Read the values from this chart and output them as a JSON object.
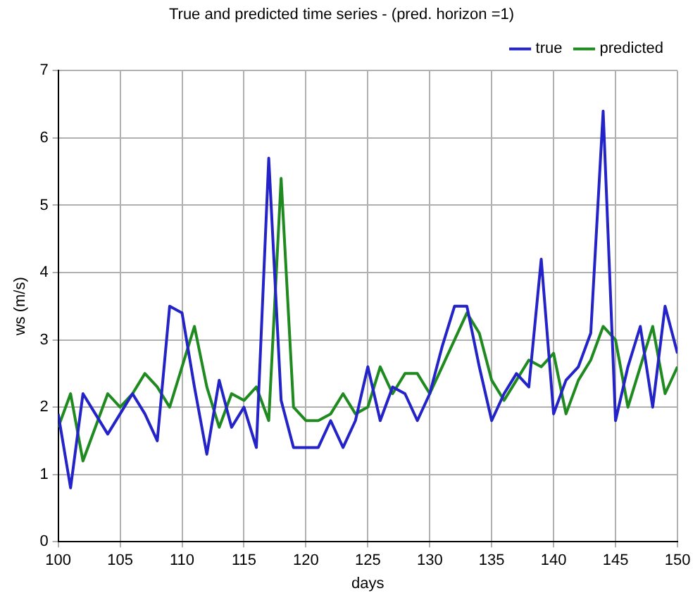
{
  "chart_data": {
    "type": "line",
    "title": "True and predicted time series - (pred. horizon =1)",
    "xlabel": "days",
    "ylabel": "ws (m/s)",
    "x": [
      100,
      101,
      102,
      103,
      104,
      105,
      106,
      107,
      108,
      109,
      110,
      111,
      112,
      113,
      114,
      115,
      116,
      117,
      118,
      119,
      120,
      121,
      122,
      123,
      124,
      125,
      126,
      127,
      128,
      129,
      130,
      131,
      132,
      133,
      134,
      135,
      136,
      137,
      138,
      139,
      140,
      141,
      142,
      143,
      144,
      145,
      146,
      147,
      148,
      149,
      150
    ],
    "series": [
      {
        "name": "true",
        "color": "#2323c8",
        "values": [
          1.9,
          0.8,
          2.2,
          1.9,
          1.6,
          1.9,
          2.2,
          1.9,
          1.5,
          3.5,
          3.4,
          2.3,
          1.3,
          2.4,
          1.7,
          2.0,
          1.4,
          5.7,
          2.1,
          1.4,
          1.4,
          1.4,
          1.8,
          1.4,
          1.8,
          2.6,
          1.8,
          2.3,
          2.2,
          1.8,
          2.2,
          2.9,
          3.5,
          3.5,
          2.6,
          1.8,
          2.2,
          2.5,
          2.3,
          4.2,
          1.9,
          2.4,
          2.6,
          3.1,
          6.4,
          1.8,
          2.6,
          3.2,
          2.0,
          3.5,
          2.8
        ]
      },
      {
        "name": "predicted",
        "color": "#1f8a1f",
        "values": [
          1.7,
          2.2,
          1.2,
          1.7,
          2.2,
          2.0,
          2.2,
          2.5,
          2.3,
          2.0,
          2.6,
          3.2,
          2.3,
          1.7,
          2.2,
          2.1,
          2.3,
          1.8,
          5.4,
          2.0,
          1.8,
          1.8,
          1.9,
          2.2,
          1.9,
          2.0,
          2.6,
          2.2,
          2.5,
          2.5,
          2.2,
          2.6,
          3.0,
          3.4,
          3.1,
          2.4,
          2.1,
          2.4,
          2.7,
          2.6,
          2.8,
          1.9,
          2.4,
          2.7,
          3.2,
          3.0,
          2.0,
          2.6,
          3.2,
          2.2,
          2.6
        ]
      }
    ],
    "xlim": [
      100,
      150
    ],
    "xticks": [
      100,
      105,
      110,
      115,
      120,
      125,
      130,
      135,
      140,
      145,
      150
    ],
    "ylim": [
      0,
      7
    ],
    "yticks": [
      0,
      1,
      2,
      3,
      4,
      5,
      6,
      7
    ],
    "grid": true,
    "legend": "top right",
    "marker": "none",
    "line_style": "solid"
  }
}
